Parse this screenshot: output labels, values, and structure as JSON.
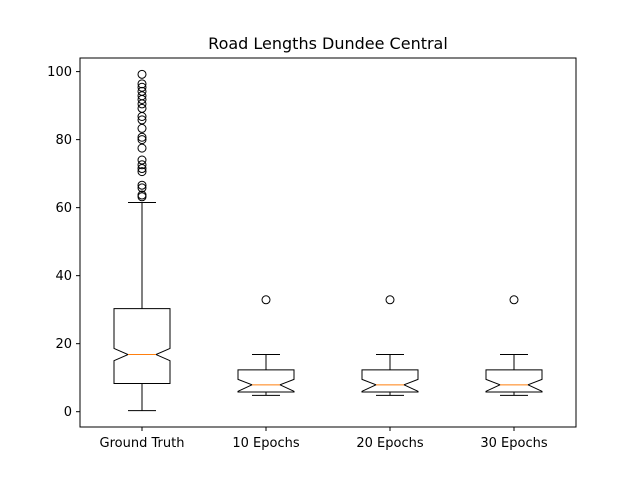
{
  "chart_data": {
    "type": "boxplot",
    "title": "Road Lengths Dundee Central",
    "xlabel": "",
    "ylabel": "",
    "ylim": [
      -4.5,
      104
    ],
    "yticks": [
      0,
      20,
      40,
      60,
      80,
      100
    ],
    "notched": true,
    "grid": false,
    "colors": {
      "box": "#000000",
      "median": "#ff7f0e",
      "flier": "#000000"
    },
    "categories": [
      "Ground Truth",
      "10 Epochs",
      "20 Epochs",
      "30 Epochs"
    ],
    "boxes": [
      {
        "label": "Ground Truth",
        "whislo": 0.3,
        "q1": 8.3,
        "med": 16.8,
        "q3": 30.3,
        "whishi": 61.5,
        "cilo": 15.0,
        "cihi": 18.6,
        "fliers": [
          63.2,
          63.7,
          65.8,
          66.6,
          70.6,
          71.5,
          72.6,
          74.0,
          77.5,
          80.0,
          80.7,
          83.3,
          85.8,
          86.8,
          89.2,
          90.5,
          91.8,
          92.9,
          94.2,
          95.4,
          96.4,
          99.2
        ]
      },
      {
        "label": "10 Epochs",
        "whislo": 4.8,
        "q1": 5.8,
        "med": 7.9,
        "q3": 12.3,
        "whishi": 16.8,
        "cilo": 6.0,
        "cihi": 9.5,
        "fliers": [
          32.9
        ]
      },
      {
        "label": "20 Epochs",
        "whislo": 4.8,
        "q1": 5.8,
        "med": 7.9,
        "q3": 12.3,
        "whishi": 16.8,
        "cilo": 6.0,
        "cihi": 9.5,
        "fliers": [
          32.9
        ]
      },
      {
        "label": "30 Epochs",
        "whislo": 4.8,
        "q1": 5.8,
        "med": 7.9,
        "q3": 12.3,
        "whishi": 16.8,
        "cilo": 6.0,
        "cihi": 9.5,
        "fliers": [
          32.9
        ]
      }
    ]
  }
}
